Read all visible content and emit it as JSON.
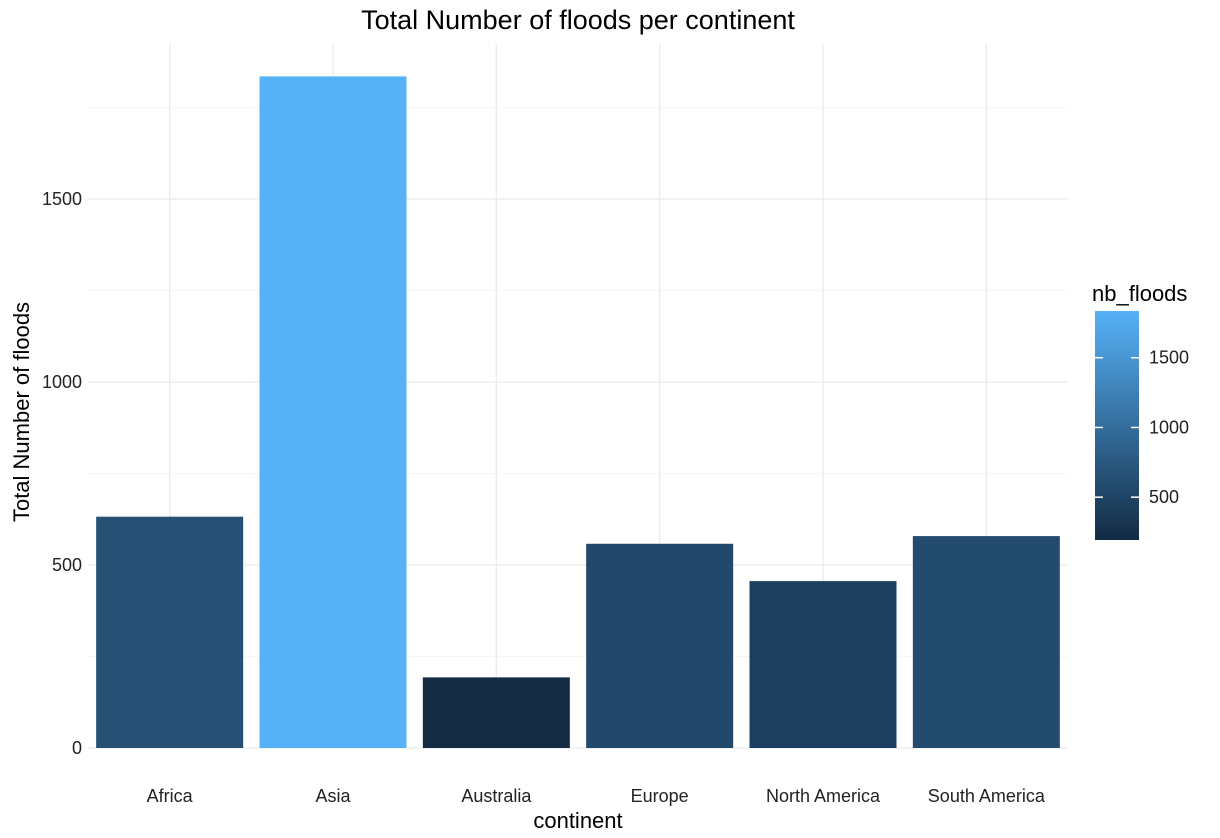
{
  "chart_data": {
    "type": "bar",
    "title": "Total Number of floods per continent",
    "xlabel": "continent",
    "ylabel": "Total Number of floods",
    "categories": [
      "Africa",
      "Asia",
      "Australia",
      "Europe",
      "North America",
      "South America"
    ],
    "values": [
      632,
      1835,
      193,
      558,
      456,
      579
    ],
    "ylim": [
      0,
      1900
    ],
    "yticks": [
      0,
      500,
      1000,
      1500
    ],
    "grid": true,
    "legend": {
      "title": "nb_floods",
      "placement": "right",
      "type": "colorbar",
      "range": [
        193,
        1835
      ],
      "ticks": [
        500,
        1000,
        1500
      ],
      "color_low": "#132B43",
      "color_high": "#56B1F7"
    }
  }
}
